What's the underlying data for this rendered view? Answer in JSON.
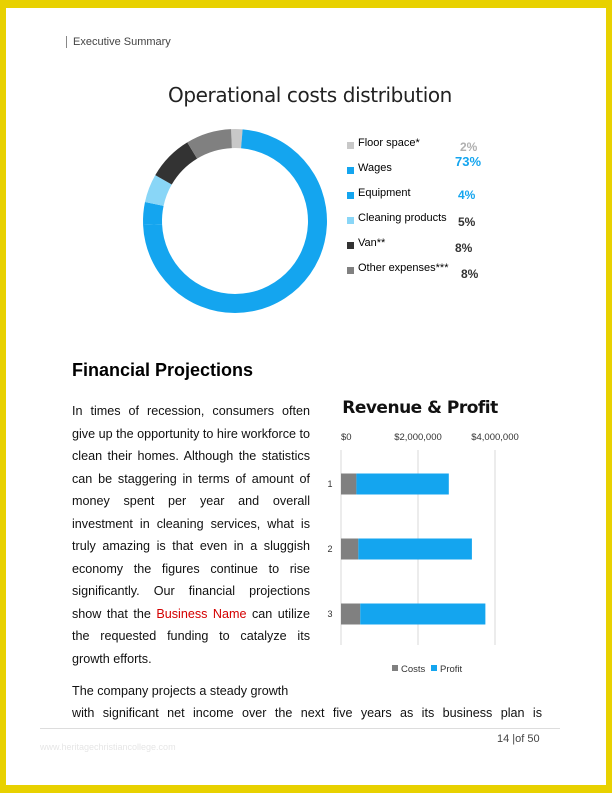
{
  "header": {
    "section": "Executive Summary"
  },
  "pie_chart": {
    "title": "Operational costs distribution"
  },
  "chart_data": [
    {
      "type": "pie",
      "title": "Operational costs distribution",
      "categories": [
        "Floor space*",
        "Wages",
        "Equipment",
        "Cleaning products",
        "Van**",
        "Other expenses***"
      ],
      "values": [
        2,
        73,
        4,
        5,
        8,
        8
      ],
      "labels": [
        "2%",
        "73%",
        "4%",
        "5%",
        "8%",
        "8%"
      ],
      "colors": [
        "#c8c8c8",
        "#14a5ef",
        "#14a5ef",
        "#89d6f7",
        "#333333",
        "#808080"
      ],
      "label_colors": [
        "#b0b0b0",
        "#14a5ef",
        "#14a5ef",
        "#333333",
        "#333333",
        "#333333"
      ],
      "donut": true,
      "legend": "right"
    },
    {
      "type": "bar",
      "orientation": "horizontal",
      "stacked": true,
      "title": "Revenue & Profit",
      "categories": [
        "1",
        "2",
        "3"
      ],
      "series": [
        {
          "name": "Costs",
          "values": [
            400000,
            450000,
            500000
          ],
          "color": "#808080"
        },
        {
          "name": "Profit",
          "values": [
            2400000,
            2950000,
            3250000
          ],
          "color": "#14a5ef"
        }
      ],
      "xlim": [
        0,
        5000000
      ],
      "xticks": [
        "$0",
        "$2,000,000",
        "$4,000,000"
      ],
      "grid": true,
      "legend": "bottom"
    }
  ],
  "section": {
    "heading": "Financial Projections",
    "para1_a": "In times of recession, consumers often give up the opportunity to hire workforce to clean their homes. Although the statistics can be staggering in terms of amount of money spent per year and overall investment in cleaning services, what is truly amazing is that even in a sluggish economy the figures continue to rise significantly. Our financial projections show that the ",
    "para1_link": "Business Name",
    "para1_b": " can utilize the requested funding to catalyze its growth efforts.",
    "para2_line1": "The company projects a steady growth",
    "para2_line2": "with significant net income over the next five years as its business plan is"
  },
  "footer": {
    "page": "14 |of 50",
    "watermark": "www.heritagechristiancollege.com"
  }
}
